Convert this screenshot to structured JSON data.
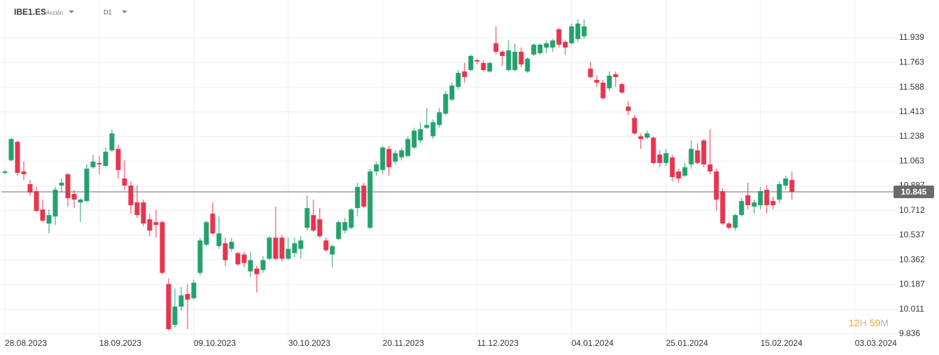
{
  "header": {
    "symbol": "IBE1.ES",
    "kind": "Acción",
    "timeframe": "D1"
  },
  "countdown": {
    "hours": "12",
    "hours_unit": "H",
    "minutes": "59",
    "minutes_unit": "M"
  },
  "chart_data": {
    "type": "candlestick",
    "up_color": "#23a26d",
    "down_color": "#e8344e",
    "last_price_color": "#6b6b6b",
    "grid": true,
    "open": [
      10.98,
      11.07,
      11.2,
      10.99,
      10.9,
      10.85,
      10.72,
      10.62,
      10.67,
      10.89,
      10.97,
      10.83,
      10.77,
      10.78,
      11.02,
      11.05,
      11.03,
      11.14,
      11.15,
      10.94,
      10.89,
      10.77,
      10.77,
      10.65,
      10.63,
      10.63,
      10.19,
      9.9,
      10.03,
      10.12,
      10.09,
      10.27,
      10.47,
      10.69,
      10.46,
      10.48,
      10.44,
      10.41,
      10.4,
      10.28,
      10.3,
      10.29,
      10.37,
      10.52,
      10.52,
      10.37,
      10.41,
      10.44,
      10.59,
      10.68,
      10.65,
      10.5,
      10.4,
      10.51,
      10.57,
      10.59,
      10.73,
      10.89,
      10.59,
      10.99,
      11.0,
      11.15,
      11.06,
      11.09,
      11.1,
      11.16,
      11.21,
      11.3,
      11.24,
      11.32,
      11.4,
      11.5,
      11.59,
      11.7,
      11.71,
      11.78,
      11.76,
      11.7,
      11.9,
      11.84,
      11.71,
      11.71,
      11.84,
      11.7,
      11.82,
      11.83,
      11.87,
      11.87,
      12.0,
      11.91,
      11.9,
      11.93,
      11.95,
      11.72,
      11.64,
      11.62,
      11.58,
      11.68,
      11.61,
      11.45,
      11.37,
      11.24,
      11.23,
      11.23,
      11.11,
      11.05,
      11.09,
      10.99,
      10.96,
      11.04,
      11.14,
      11.21,
      11.04,
      10.99,
      10.85,
      10.62,
      10.59,
      10.68,
      10.82,
      10.74,
      10.75,
      10.86,
      10.78,
      10.79,
      10.89,
      10.93
    ],
    "high": [
      11.0,
      11.23,
      11.21,
      11.06,
      10.93,
      10.88,
      10.79,
      10.72,
      10.88,
      10.94,
      10.98,
      10.86,
      10.8,
      11.04,
      11.11,
      11.1,
      11.16,
      11.29,
      11.18,
      11.07,
      10.92,
      10.89,
      10.79,
      10.69,
      10.72,
      10.64,
      10.23,
      10.16,
      10.17,
      10.19,
      10.22,
      10.52,
      10.64,
      10.77,
      10.67,
      10.52,
      10.52,
      10.42,
      10.42,
      10.42,
      10.32,
      10.39,
      10.53,
      10.74,
      10.54,
      10.52,
      10.52,
      10.53,
      10.82,
      10.79,
      10.73,
      10.52,
      10.47,
      10.64,
      10.66,
      10.73,
      10.91,
      10.91,
      11.01,
      11.06,
      11.17,
      11.17,
      11.14,
      11.16,
      11.24,
      11.3,
      11.34,
      11.44,
      11.36,
      11.44,
      11.56,
      11.62,
      11.71,
      11.76,
      11.82,
      11.79,
      11.78,
      11.77,
      12.02,
      11.85,
      11.92,
      11.9,
      11.87,
      11.8,
      11.9,
      11.9,
      11.92,
      11.93,
      12.01,
      11.92,
      12.04,
      12.07,
      12.07,
      11.77,
      11.67,
      11.64,
      11.7,
      11.7,
      11.62,
      11.49,
      11.39,
      11.26,
      11.28,
      11.24,
      11.14,
      11.15,
      11.11,
      11.01,
      11.05,
      11.21,
      11.19,
      11.22,
      11.29,
      11.01,
      10.87,
      10.63,
      10.69,
      10.8,
      10.91,
      10.79,
      10.88,
      10.89,
      10.81,
      10.92,
      10.96,
      10.99
    ],
    "low": [
      10.97,
      11.06,
      10.96,
      10.93,
      10.82,
      10.7,
      10.63,
      10.55,
      10.61,
      10.84,
      10.74,
      10.73,
      10.63,
      10.77,
      11.01,
      10.97,
      11.02,
      11.13,
      10.94,
      10.86,
      10.69,
      10.66,
      10.6,
      10.53,
      10.52,
      10.26,
      9.86,
      9.88,
      10.0,
      9.87,
      10.08,
      10.25,
      10.46,
      10.54,
      10.44,
      10.32,
      10.42,
      10.32,
      10.31,
      10.24,
      10.13,
      10.27,
      10.36,
      10.36,
      10.35,
      10.36,
      10.38,
      10.37,
      10.57,
      10.56,
      10.52,
      10.42,
      10.31,
      10.5,
      10.55,
      10.58,
      10.67,
      10.73,
      10.58,
      10.96,
      10.97,
      10.96,
      11.04,
      11.07,
      11.09,
      11.15,
      11.19,
      11.29,
      11.22,
      11.3,
      11.39,
      11.49,
      11.57,
      11.62,
      11.7,
      11.75,
      11.7,
      11.69,
      11.82,
      11.74,
      11.7,
      11.7,
      11.73,
      11.69,
      11.81,
      11.82,
      11.83,
      11.84,
      11.87,
      11.82,
      11.89,
      11.91,
      11.93,
      11.65,
      11.59,
      11.5,
      11.56,
      11.59,
      11.54,
      11.39,
      11.25,
      11.15,
      11.22,
      11.04,
      11.02,
      11.03,
      10.92,
      10.91,
      10.95,
      11.01,
      11.04,
      11.02,
      10.97,
      10.71,
      10.61,
      10.58,
      10.57,
      10.67,
      10.72,
      10.69,
      10.72,
      10.69,
      10.72,
      10.77,
      10.86,
      10.79
    ],
    "close": [
      10.99,
      11.22,
      10.98,
      10.97,
      10.84,
      10.71,
      10.64,
      10.68,
      10.86,
      10.91,
      10.8,
      10.79,
      10.79,
      11.01,
      11.06,
      11.04,
      11.13,
      11.26,
      11.0,
      10.89,
      10.75,
      10.68,
      10.62,
      10.57,
      10.61,
      10.27,
      9.87,
      10.03,
      10.11,
      10.08,
      10.2,
      10.5,
      10.63,
      10.55,
      10.55,
      10.36,
      10.49,
      10.33,
      10.34,
      10.36,
      10.26,
      10.36,
      10.52,
      10.37,
      10.37,
      10.44,
      10.48,
      10.5,
      10.73,
      10.57,
      10.53,
      10.43,
      10.46,
      10.63,
      10.63,
      10.72,
      10.88,
      10.74,
      10.99,
      11.04,
      11.16,
      11.02,
      11.12,
      11.14,
      11.22,
      11.28,
      11.29,
      11.32,
      11.34,
      11.41,
      11.54,
      11.6,
      11.69,
      11.66,
      11.81,
      11.77,
      11.71,
      11.76,
      11.84,
      11.81,
      11.85,
      11.84,
      11.75,
      11.79,
      11.89,
      11.89,
      11.9,
      11.92,
      11.89,
      11.87,
      12.02,
      12.04,
      12.02,
      11.66,
      11.62,
      11.51,
      11.67,
      11.66,
      11.55,
      11.42,
      11.26,
      11.22,
      11.26,
      11.05,
      11.05,
      11.12,
      10.95,
      10.94,
      11.02,
      11.15,
      11.05,
      11.04,
      10.99,
      10.79,
      10.62,
      10.59,
      10.68,
      10.78,
      10.75,
      10.77,
      10.85,
      10.75,
      10.75,
      10.9,
      10.94,
      10.845
    ],
    "last_price": 10.845,
    "ylim": [
      9.771,
      12.108
    ],
    "yticks": [
      9.836,
      10.011,
      10.187,
      10.362,
      10.537,
      10.712,
      10.887,
      11.063,
      11.238,
      11.413,
      11.588,
      11.763,
      11.939
    ],
    "xlim": [
      -0.556,
      141.8
    ],
    "xticks": [
      {
        "value": 0,
        "label": "28.08.2023"
      },
      {
        "value": 15,
        "label": "18.09.2023"
      },
      {
        "value": 30,
        "label": "09.10.2023"
      },
      {
        "value": 45,
        "label": "30.10.2023"
      },
      {
        "value": 60,
        "label": "20.11.2023"
      },
      {
        "value": 75,
        "label": "11.12.2023"
      },
      {
        "value": 90,
        "label": "04.01.2024"
      },
      {
        "value": 105,
        "label": "25.01.2024"
      },
      {
        "value": 120,
        "label": "15.02.2024"
      },
      {
        "value": 135,
        "label": "03.03.2024"
      }
    ]
  }
}
